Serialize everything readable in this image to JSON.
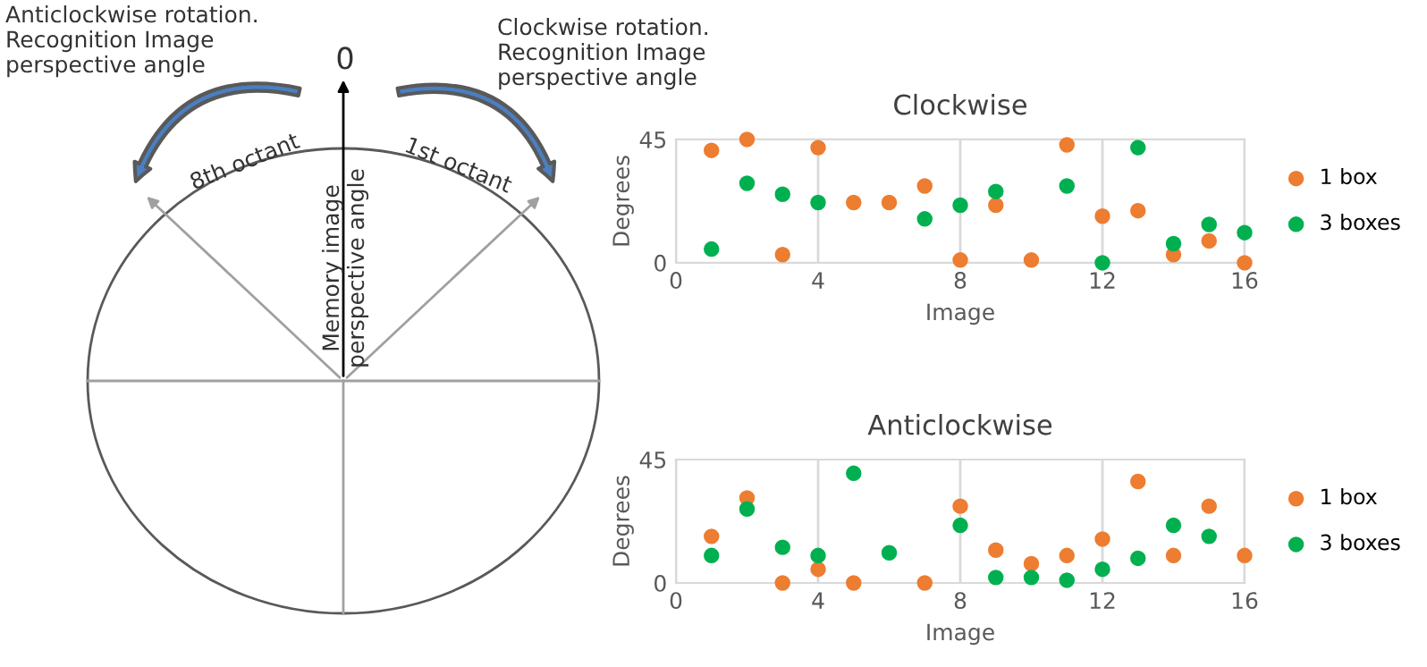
{
  "chart_data": [
    {
      "type": "other",
      "annotations": [
        "Anticlockwise rotation.\nRecognition Image\nperspective angle",
        "Clockwise rotation.\nRecognition Image\nperspective angle",
        "0",
        "8th octant",
        "1st octant",
        "Memory image\nperspective angle"
      ]
    },
    {
      "type": "scatter",
      "title": "Clockwise",
      "xlabel": "Image",
      "ylabel": "Degrees",
      "xlim": [
        0,
        16
      ],
      "xticks": [
        0,
        4,
        8,
        12,
        16
      ],
      "ylim": [
        0,
        45
      ],
      "yticks": [
        0,
        45
      ],
      "grid": "x",
      "legend": "right",
      "marker": "circle",
      "series": [
        {
          "name": "1 box",
          "color": "#ed7d31",
          "x": [
            1,
            2,
            3,
            4,
            5,
            6,
            7,
            8,
            9,
            10,
            11,
            12,
            13,
            14,
            15,
            16
          ],
          "values": [
            41,
            45,
            3,
            42,
            22,
            22,
            28,
            1,
            21,
            1,
            43,
            17,
            19,
            3,
            8,
            0
          ]
        },
        {
          "name": "3 boxes",
          "color": "#00b050",
          "x": [
            1,
            2,
            3,
            4,
            7,
            8,
            9,
            11,
            12,
            13,
            14,
            15,
            16
          ],
          "values": [
            5,
            29,
            25,
            22,
            16,
            21,
            26,
            28,
            0,
            42,
            7,
            14,
            11
          ]
        }
      ]
    },
    {
      "type": "scatter",
      "title": "Anticlockwise",
      "xlabel": "Image",
      "ylabel": "Degrees",
      "xlim": [
        0,
        16
      ],
      "xticks": [
        0,
        4,
        8,
        12,
        16
      ],
      "ylim": [
        0,
        45
      ],
      "yticks": [
        0,
        45
      ],
      "grid": "x",
      "legend": "right",
      "marker": "circle",
      "series": [
        {
          "name": "1 box",
          "color": "#ed7d31",
          "x": [
            1,
            2,
            3,
            4,
            5,
            7,
            8,
            9,
            10,
            11,
            12,
            13,
            14,
            15,
            16
          ],
          "values": [
            17,
            31,
            0,
            5,
            0,
            0,
            28,
            12,
            7,
            10,
            16,
            37,
            10,
            28,
            10
          ]
        },
        {
          "name": "3 boxes",
          "color": "#00b050",
          "x": [
            1,
            2,
            3,
            4,
            5,
            6,
            8,
            9,
            10,
            11,
            12,
            13,
            14,
            15
          ],
          "values": [
            10,
            27,
            13,
            10,
            40,
            11,
            21,
            2,
            2,
            1,
            5,
            9,
            21,
            17
          ]
        }
      ]
    }
  ]
}
